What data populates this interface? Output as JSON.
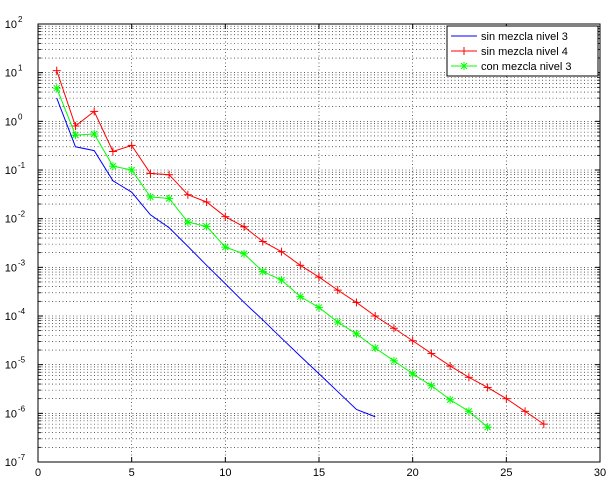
{
  "chart_data": {
    "type": "line",
    "title": "",
    "xlabel": "",
    "ylabel": "",
    "xlim": [
      0,
      30
    ],
    "ylim": [
      1e-07,
      100
    ],
    "yscale": "log",
    "grid": true,
    "legend_position": "top-right",
    "x_ticks": [
      {
        "value": 0,
        "label": "0"
      },
      {
        "value": 5,
        "label": "5"
      },
      {
        "value": 10,
        "label": "10"
      },
      {
        "value": 15,
        "label": "15"
      },
      {
        "value": 20,
        "label": "20"
      },
      {
        "value": 25,
        "label": "25"
      },
      {
        "value": 30,
        "label": "30"
      }
    ],
    "y_ticks": [
      {
        "exp": -7,
        "base": "10",
        "sup": "-7"
      },
      {
        "exp": -6,
        "base": "10",
        "sup": "-6"
      },
      {
        "exp": -5,
        "base": "10",
        "sup": "-5"
      },
      {
        "exp": -4,
        "base": "10",
        "sup": "-4"
      },
      {
        "exp": -3,
        "base": "10",
        "sup": "-3"
      },
      {
        "exp": -2,
        "base": "10",
        "sup": "-2"
      },
      {
        "exp": -1,
        "base": "10",
        "sup": "-1"
      },
      {
        "exp": 0,
        "base": "10",
        "sup": "0"
      },
      {
        "exp": 1,
        "base": "10",
        "sup": "1"
      },
      {
        "exp": 2,
        "base": "10",
        "sup": "2"
      }
    ],
    "series": [
      {
        "name": "sin mezcla nivel 3",
        "color": "#0000ff",
        "marker": "none",
        "x": [
          1,
          2,
          3,
          4,
          5,
          6,
          7,
          8,
          9,
          10,
          11,
          12,
          13,
          14,
          15,
          16,
          17,
          18
        ],
        "values": [
          3.0,
          0.3,
          0.25,
          0.06,
          0.035,
          0.012,
          0.0065,
          0.0027,
          0.0011,
          0.00046,
          0.00019,
          8.3e-05,
          3.5e-05,
          1.5e-05,
          6.5e-06,
          2.8e-06,
          1.2e-06,
          8.5e-07
        ]
      },
      {
        "name": "sin mezcla nivel 4",
        "color": "#ff0000",
        "marker": "plus",
        "x": [
          1,
          2,
          3,
          4,
          5,
          6,
          7,
          8,
          9,
          10,
          11,
          12,
          13,
          14,
          15,
          16,
          17,
          18,
          19,
          20,
          21,
          22,
          23,
          24,
          25,
          26,
          27
        ],
        "values": [
          11.0,
          0.8,
          1.6,
          0.24,
          0.32,
          0.085,
          0.08,
          0.031,
          0.022,
          0.011,
          0.0068,
          0.0034,
          0.0021,
          0.0011,
          0.00063,
          0.00034,
          0.00019,
          0.0001,
          5.6e-05,
          3.1e-05,
          1.7e-05,
          9.4e-06,
          5.5e-06,
          3.4e-06,
          2e-06,
          1.1e-06,
          6e-07
        ]
      },
      {
        "name": "con mezcla nivel 3",
        "color": "#00ff00",
        "marker": "star",
        "x": [
          1,
          2,
          3,
          4,
          5,
          6,
          7,
          8,
          9,
          10,
          11,
          12,
          13,
          14,
          15,
          16,
          17,
          18,
          19,
          20,
          21,
          22,
          23,
          24
        ],
        "values": [
          4.8,
          0.52,
          0.55,
          0.12,
          0.1,
          0.028,
          0.026,
          0.0085,
          0.0069,
          0.0026,
          0.0019,
          0.00082,
          0.00055,
          0.00025,
          0.00015,
          7.5e-05,
          4.3e-05,
          2.2e-05,
          1.2e-05,
          6.5e-06,
          3.7e-06,
          1.9e-06,
          1.1e-06,
          5.2e-07
        ]
      }
    ]
  }
}
